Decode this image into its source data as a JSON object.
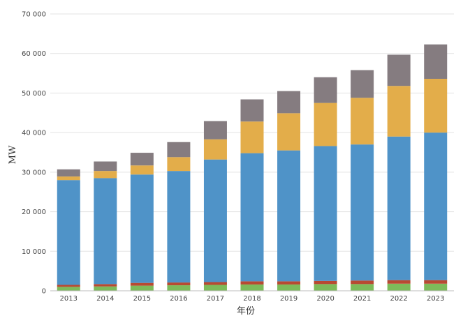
{
  "chart_data": {
    "type": "bar",
    "stacked": true,
    "xlabel": "年份",
    "ylabel": "MW",
    "ylim": [
      0,
      70000
    ],
    "yticks": [
      0,
      10000,
      20000,
      30000,
      40000,
      50000,
      60000,
      70000
    ],
    "ytick_labels": [
      "0",
      "10 000",
      "20 000",
      "30 000",
      "40 000",
      "50 000",
      "60 000",
      "70 000"
    ],
    "grid": true,
    "legend": "none",
    "categories": [
      "2013",
      "2014",
      "2015",
      "2016",
      "2017",
      "2018",
      "2019",
      "2020",
      "2021",
      "2022",
      "2023"
    ],
    "series": [
      {
        "color": "#7dbb5a",
        "values": [
          1000,
          1100,
          1300,
          1400,
          1500,
          1600,
          1600,
          1700,
          1700,
          1800,
          1800
        ]
      },
      {
        "color": "#b84a32",
        "values": [
          500,
          600,
          700,
          700,
          700,
          800,
          800,
          800,
          900,
          900,
          900
        ]
      },
      {
        "color": "#4f93c8",
        "values": [
          26500,
          26800,
          27400,
          28200,
          31000,
          32400,
          33100,
          34100,
          34400,
          36300,
          37300
        ]
      },
      {
        "color": "#e3ad4a",
        "values": [
          900,
          1800,
          2300,
          3500,
          5100,
          8000,
          9400,
          10900,
          11800,
          12800,
          13600
        ]
      },
      {
        "color": "#857c80",
        "values": [
          1800,
          2400,
          3200,
          3800,
          4600,
          5600,
          5600,
          6500,
          7000,
          7900,
          8700
        ]
      }
    ]
  }
}
